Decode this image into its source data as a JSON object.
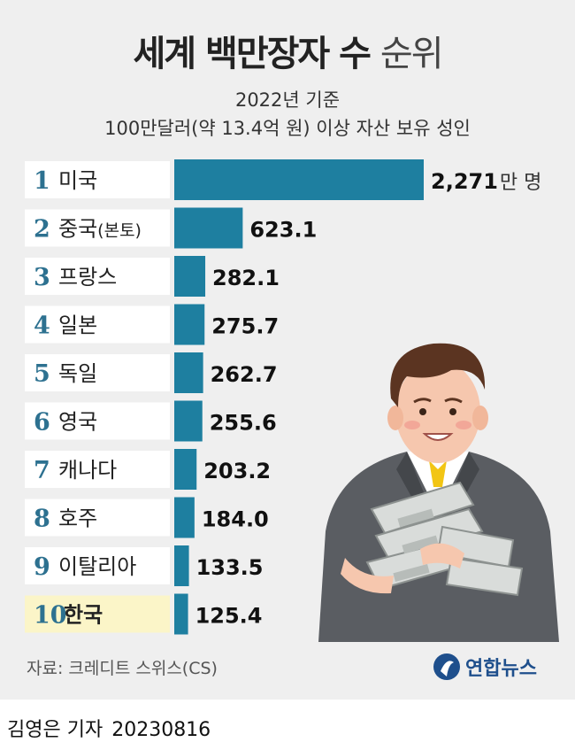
{
  "header": {
    "title_bold": "세계 백만장자 수",
    "title_light": "순위",
    "subtitle_1": "2022년 기준",
    "subtitle_2": "100만달러(약 13.4억 원) 이상 자산 보유 성인"
  },
  "chart_data": {
    "type": "bar",
    "orientation": "horizontal",
    "title": "세계 백만장자 수 순위",
    "unit": "만 명",
    "categories": [
      "미국",
      "중국(본토)",
      "프랑스",
      "일본",
      "독일",
      "영국",
      "캐나다",
      "호주",
      "이탈리아",
      "한국"
    ],
    "ranks": [
      "1",
      "2",
      "3",
      "4",
      "5",
      "6",
      "7",
      "8",
      "9",
      "10"
    ],
    "values": [
      2271,
      623.1,
      282.1,
      275.7,
      262.7,
      255.6,
      203.2,
      184.0,
      133.5,
      125.4
    ],
    "value_labels": [
      "2,271",
      "623.1",
      "282.1",
      "275.7",
      "262.7",
      "255.6",
      "203.2",
      "184.0",
      "133.5",
      "125.4"
    ],
    "highlight": "한국",
    "bar_color": "#1e7fa0",
    "highlight_label_bg": "#fbf5c8"
  },
  "footer": {
    "source": "자료: 크레디트 스위스(CS)",
    "logo_text": "연합뉴스",
    "byline": "김영은 기자",
    "date": "20230816"
  },
  "colors": {
    "background": "#efefef",
    "rank": "#2d7190",
    "logo": "#1e4f8c"
  },
  "illustration": {
    "name": "businessman-holding-money-stacks"
  }
}
